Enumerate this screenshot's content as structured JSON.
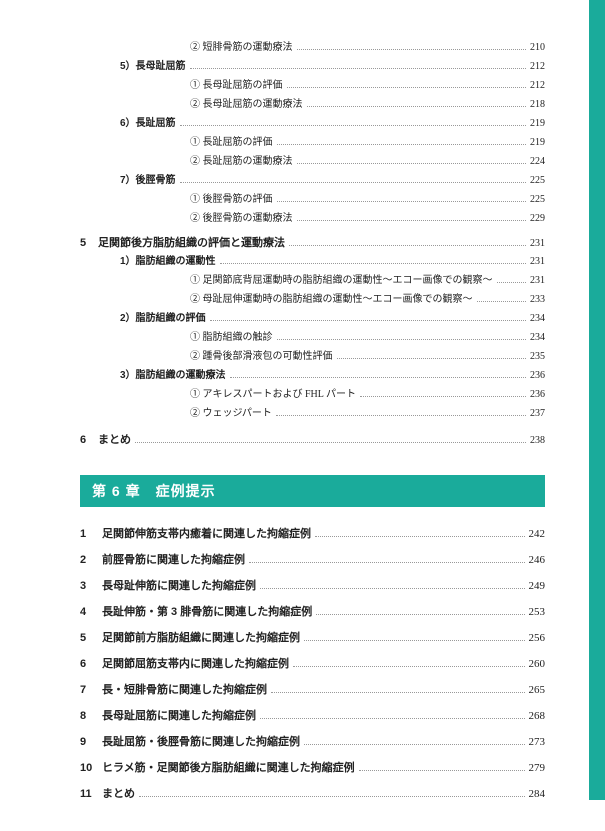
{
  "colors": {
    "accent": "#1aab9b",
    "text": "#222222",
    "dots": "#999999",
    "bg": "#ffffff"
  },
  "rows": [
    {
      "indent": 3,
      "label": "② 短腓骨筋の運動療法",
      "page": "210"
    },
    {
      "indent": 1,
      "label": "5）長母趾屈筋",
      "page": "212",
      "bold": true
    },
    {
      "indent": 3,
      "label": "① 長母趾屈筋の評価",
      "page": "212"
    },
    {
      "indent": 3,
      "label": "② 長母趾屈筋の運動療法",
      "page": "218"
    },
    {
      "indent": 1,
      "label": "6）長趾屈筋",
      "page": "219",
      "bold": true
    },
    {
      "indent": 3,
      "label": "① 長趾屈筋の評価",
      "page": "219"
    },
    {
      "indent": 3,
      "label": "② 長趾屈筋の運動療法",
      "page": "224"
    },
    {
      "indent": 1,
      "label": "7）後脛骨筋",
      "page": "225",
      "bold": true
    },
    {
      "indent": 3,
      "label": "① 後脛骨筋の評価",
      "page": "225"
    },
    {
      "indent": 3,
      "label": "② 後脛骨筋の運動療法",
      "page": "229"
    }
  ],
  "section5": {
    "num": "5",
    "label": "足関節後方脂肪組織の評価と運動療法",
    "page": "231"
  },
  "rows2": [
    {
      "indent": 1,
      "label": "1）脂肪組織の運動性",
      "page": "231",
      "bold": true
    },
    {
      "indent": 3,
      "label": "① 足関節底背屈運動時の脂肪組織の運動性～エコー画像での観察～",
      "page": "231"
    },
    {
      "indent": 3,
      "label": "② 母趾屈伸運動時の脂肪組織の運動性～エコー画像での観察～",
      "page": "233"
    },
    {
      "indent": 1,
      "label": "2）脂肪組織の評価",
      "page": "234",
      "bold": true
    },
    {
      "indent": 3,
      "label": "① 脂肪組織の触診",
      "page": "234"
    },
    {
      "indent": 3,
      "label": "② 踵骨後部滑液包の可動性評価",
      "page": "235"
    },
    {
      "indent": 1,
      "label": "3）脂肪組織の運動療法",
      "page": "236",
      "bold": true
    },
    {
      "indent": 3,
      "label": "① アキレスパートおよび FHL パート",
      "page": "236"
    },
    {
      "indent": 3,
      "label": "② ウェッジパート",
      "page": "237"
    }
  ],
  "matome": {
    "num": "6",
    "label": "まとめ",
    "page": "238"
  },
  "chapter": {
    "title": "第 6 章　症例提示"
  },
  "ch6rows": [
    {
      "num": "1",
      "label": "足関節伸筋支帯内癒着に関連した拘縮症例",
      "page": "242"
    },
    {
      "num": "2",
      "label": "前脛骨筋に関連した拘縮症例",
      "page": "246"
    },
    {
      "num": "3",
      "label": "長母趾伸筋に関連した拘縮症例",
      "page": "249"
    },
    {
      "num": "4",
      "label": "長趾伸筋・第 3 腓骨筋に関連した拘縮症例",
      "page": "253"
    },
    {
      "num": "5",
      "label": "足関節前方脂肪組織に関連した拘縮症例",
      "page": "256"
    },
    {
      "num": "6",
      "label": "足関節屈筋支帯内に関連した拘縮症例",
      "page": "260"
    },
    {
      "num": "7",
      "label": "長・短腓骨筋に関連した拘縮症例",
      "page": "265"
    },
    {
      "num": "8",
      "label": "長母趾屈筋に関連した拘縮症例",
      "page": "268"
    },
    {
      "num": "9",
      "label": "長趾屈筋・後脛骨筋に関連した拘縮症例",
      "page": "273"
    },
    {
      "num": "10",
      "label": "ヒラメ筋・足関節後方脂肪組織に関連した拘縮症例",
      "page": "279"
    },
    {
      "num": "11",
      "label": "まとめ",
      "page": "284"
    }
  ]
}
